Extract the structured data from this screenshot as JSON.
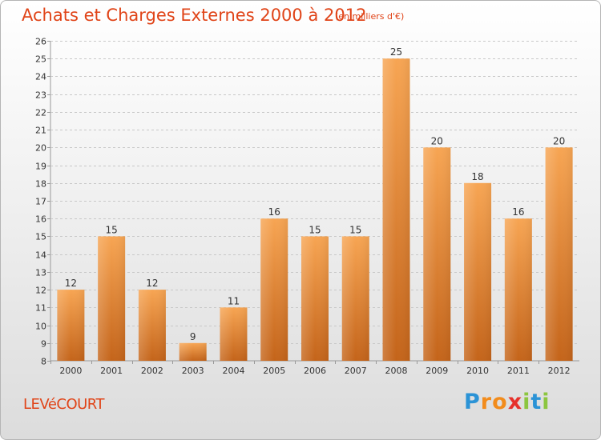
{
  "chart_data": {
    "type": "bar",
    "title": "Achats et Charges Externes 2000 à 2012",
    "subtitle": "(en milliers d'€)",
    "categories": [
      "2000",
      "2001",
      "2002",
      "2003",
      "2004",
      "2005",
      "2006",
      "2007",
      "2008",
      "2009",
      "2010",
      "2011",
      "2012"
    ],
    "values": [
      12,
      15,
      12,
      9,
      11,
      16,
      15,
      15,
      25,
      20,
      18,
      16,
      20
    ],
    "ylim": [
      8,
      26
    ],
    "yticks": [
      8,
      9,
      10,
      11,
      12,
      13,
      14,
      15,
      16,
      17,
      18,
      19,
      20,
      21,
      22,
      23,
      24,
      25,
      26
    ],
    "xlabel": "",
    "ylabel": "",
    "grid": true,
    "legend": "none",
    "colors": {
      "bar_top": "#f7a553",
      "bar_bottom": "#c4641a",
      "grid": "#c8c8c8",
      "text": "#e04418"
    }
  },
  "footer": {
    "commune": "LEVéCOURT",
    "logo": {
      "letters": [
        "P",
        "r",
        "o",
        "x",
        "i",
        "t",
        "i"
      ],
      "colors": [
        "#2b93d6",
        "#f28c1c",
        "#f28c1c",
        "#e6312b",
        "#8cc63f",
        "#2b93d6",
        "#8cc63f"
      ]
    }
  }
}
